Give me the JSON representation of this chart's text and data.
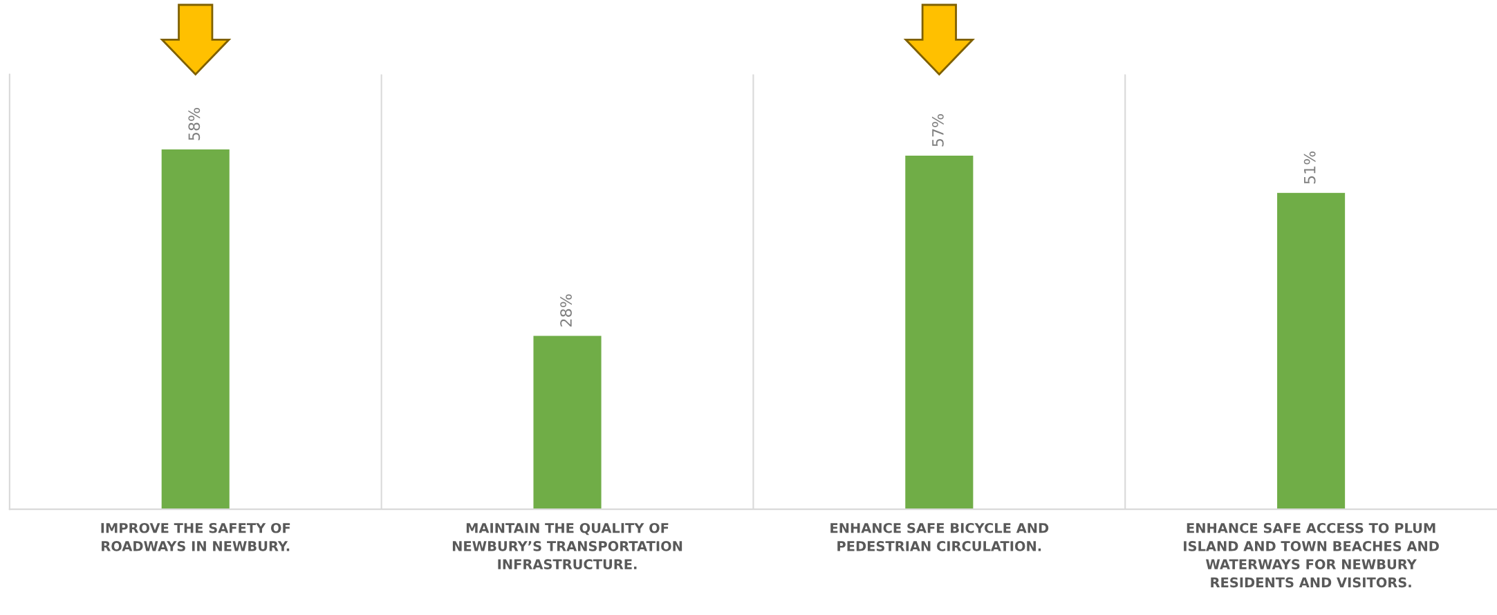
{
  "chart_data": {
    "type": "bar",
    "categories": [
      "IMPROVE THE SAFETY OF\nROADWAYS IN NEWBURY.",
      "MAINTAIN THE QUALITY OF\nNEWBURY’S TRANSPORTATION\nINFRASTRUCTURE.",
      "ENHANCE SAFE BICYCLE AND\nPEDESTRIAN CIRCULATION.",
      "ENHANCE SAFE ACCESS TO PLUM\nISLAND AND TOWN BEACHES AND\nWATERWAYS FOR NEWBURY\nRESIDENTS AND VISITORS."
    ],
    "values": [
      58,
      28,
      57,
      51
    ],
    "value_labels": [
      "58%",
      "28%",
      "57%",
      "51%"
    ],
    "color": "#70ad47",
    "ylim": [
      0,
      70
    ],
    "grid": "x",
    "legend": false
  }
}
